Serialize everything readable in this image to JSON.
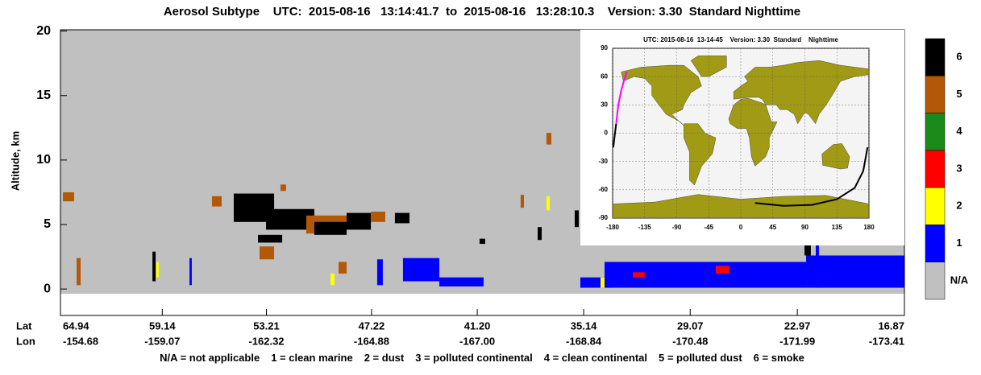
{
  "chart_data": {
    "type": "curtain",
    "title": "Aerosol Subtype    UTC:  2015-08-16   13:14:41.7  to  2015-08-16   13:28:10.3    Version: 3.30  Standard Nighttime",
    "ylabel": "Altitude, km",
    "ylim": [
      -2.05,
      20.1
    ],
    "yticks": [
      0,
      5,
      10,
      15,
      20
    ],
    "xlim": [
      64.94,
      16.87
    ],
    "x_row_labels": [
      "Lat",
      "Lon"
    ],
    "xticks": [
      64.94,
      59.14,
      53.21,
      47.22,
      {
        "value": 41.2,
        "label": "41.20"
      },
      35.14,
      29.07,
      22.97,
      16.87
    ],
    "lon_ticks": [
      -154.68,
      -159.07,
      -162.32,
      -164.88,
      {
        "value": -167,
        "label": "-167.00"
      },
      -168.84,
      -170.48,
      -171.99,
      -173.41
    ],
    "classes": [
      {
        "value": 6,
        "color": "#000000"
      },
      {
        "value": 5,
        "color": "#b35806"
      },
      {
        "value": 4,
        "color": "#1a8a1a"
      },
      {
        "value": 3,
        "color": "#ff0000"
      },
      {
        "value": 2,
        "color": "#ffff00"
      },
      {
        "value": 1,
        "color": "#0000ff"
      },
      {
        "label": "N/A",
        "color": "#c0c0c0"
      }
    ],
    "legend_text": [
      "N/A = not applicable",
      "1 = clean marine",
      "2 = dust",
      "3 = polluted continental",
      "4 = clean continental",
      "5 = polluted dust",
      "6 = smoke"
    ],
    "features": [
      {
        "lat": [
          64.8,
          64.16
        ],
        "alt": [
          6.8,
          7.5
        ],
        "subtype": 5
      },
      {
        "lat": [
          64.02,
          63.79
        ],
        "alt": [
          0.3,
          2.4
        ],
        "subtype": 5
      },
      {
        "lat": [
          59.7,
          59.52
        ],
        "alt": [
          0.6,
          2.9
        ],
        "subtype": 6
      },
      {
        "lat": [
          59.48,
          59.34
        ],
        "alt": [
          0.9,
          2.1
        ],
        "subtype": 2
      },
      {
        "lat": [
          57.59,
          57.46
        ],
        "alt": [
          0.3,
          2.4
        ],
        "subtype": 1
      },
      {
        "lat": [
          56.31,
          55.76
        ],
        "alt": [
          6.4,
          7.2
        ],
        "subtype": 5
      },
      {
        "lat": [
          55.07,
          52.77
        ],
        "alt": [
          5.2,
          7.4
        ],
        "subtype": 6
      },
      {
        "lat": [
          53.23,
          50.48
        ],
        "alt": [
          4.6,
          6.2
        ],
        "subtype": 6
      },
      {
        "lat": [
          50.94,
          48.64
        ],
        "alt": [
          4.3,
          5.7
        ],
        "subtype": 5
      },
      {
        "lat": [
          50.48,
          48.64
        ],
        "alt": [
          4.2,
          5.2
        ],
        "subtype": 6
      },
      {
        "lat": [
          48.64,
          47.26
        ],
        "alt": [
          4.6,
          5.9
        ],
        "subtype": 6
      },
      {
        "lat": [
          47.26,
          46.44
        ],
        "alt": [
          5.2,
          6.0
        ],
        "subtype": 5
      },
      {
        "lat": [
          45.89,
          45.06
        ],
        "alt": [
          5.1,
          5.9
        ],
        "subtype": 6
      },
      {
        "lat": [
          53.69,
          52.31
        ],
        "alt": [
          3.6,
          4.2
        ],
        "subtype": 6
      },
      {
        "lat": [
          53.6,
          52.77
        ],
        "alt": [
          2.3,
          3.3
        ],
        "subtype": 5
      },
      {
        "lat": [
          52.41,
          52.09
        ],
        "alt": [
          7.6,
          8.1
        ],
        "subtype": 5
      },
      {
        "lat": [
          41.07,
          40.75
        ],
        "alt": [
          3.5,
          3.9
        ],
        "subtype": 6
      },
      {
        "lat": [
          38.73,
          38.54
        ],
        "alt": [
          6.3,
          7.3
        ],
        "subtype": 5
      },
      {
        "lat": [
          37.26,
          36.98
        ],
        "alt": [
          11.2,
          12.1
        ],
        "subtype": 5
      },
      {
        "lat": [
          37.26,
          37.07
        ],
        "alt": [
          6.1,
          7.2
        ],
        "subtype": 2
      },
      {
        "lat": [
          37.76,
          37.53
        ],
        "alt": [
          3.8,
          4.8
        ],
        "subtype": 6
      },
      {
        "lat": [
          35.65,
          35.42
        ],
        "alt": [
          4.8,
          6.1
        ],
        "subtype": 6
      },
      {
        "lat": [
          49.1,
          48.64
        ],
        "alt": [
          1.2,
          2.1
        ],
        "subtype": 5
      },
      {
        "lat": [
          49.56,
          49.33
        ],
        "alt": [
          0.3,
          1.2
        ],
        "subtype": 2
      },
      {
        "lat": [
          46.9,
          46.58
        ],
        "alt": [
          0.3,
          2.3
        ],
        "subtype": 1
      },
      {
        "lat": [
          45.43,
          43.36
        ],
        "alt": [
          0.6,
          2.4
        ],
        "subtype": 1
      },
      {
        "lat": [
          43.36,
          40.84
        ],
        "alt": [
          0.2,
          0.9
        ],
        "subtype": 1
      },
      {
        "lat": [
          35.33,
          33.49
        ],
        "alt": [
          0.1,
          0.9
        ],
        "subtype": 1
      },
      {
        "lat": [
          34.18,
          33.95
        ],
        "alt": [
          0.1,
          0.9
        ],
        "subtype": 2
      },
      {
        "lat": [
          33.95,
          22.47
        ],
        "alt": [
          0.1,
          2.1
        ],
        "subtype": 1
      },
      {
        "lat": [
          22.47,
          16.87
        ],
        "alt": [
          0.1,
          2.6
        ],
        "subtype": 1
      },
      {
        "lat": [
          32.34,
          31.66
        ],
        "alt": [
          0.9,
          1.3
        ],
        "subtype": 3
      },
      {
        "lat": [
          27.62,
          26.84
        ],
        "alt": [
          1.2,
          1.8
        ],
        "subtype": 3
      },
      {
        "lat": [
          22.56,
          22.2
        ],
        "alt": [
          2.6,
          3.7
        ],
        "subtype": 6
      },
      {
        "lat": [
          21.92,
          21.74
        ],
        "alt": [
          0.1,
          3.7
        ],
        "subtype": 1
      }
    ],
    "inset": {
      "title": "UTC: 2015-08-16  13-14-45    Version: 3.30  Standard    Nighttime",
      "xlim": [
        -180,
        180
      ],
      "xticks": [
        -180,
        -135,
        -90,
        -45,
        0,
        45,
        90,
        135,
        180
      ],
      "ylim": [
        -90,
        90
      ],
      "yticks": [
        -90,
        -60,
        -30,
        0,
        30,
        60,
        90
      ],
      "tracks": [
        {
          "color": "#000000",
          "lon": [
            -179,
            -177,
            -175
          ],
          "lat": [
            -15,
            -2,
            10
          ]
        },
        {
          "color": "#ff00ff",
          "lon": [
            -175,
            -172,
            -168,
            -164,
            -160
          ],
          "lat": [
            10,
            30,
            45,
            56,
            65
          ]
        },
        {
          "color": "#000000",
          "lon": [
            20,
            60,
            100,
            135,
            160,
            172,
            178
          ],
          "lat": [
            -74,
            -77,
            -76,
            -70,
            -58,
            -40,
            -15
          ]
        }
      ]
    }
  }
}
